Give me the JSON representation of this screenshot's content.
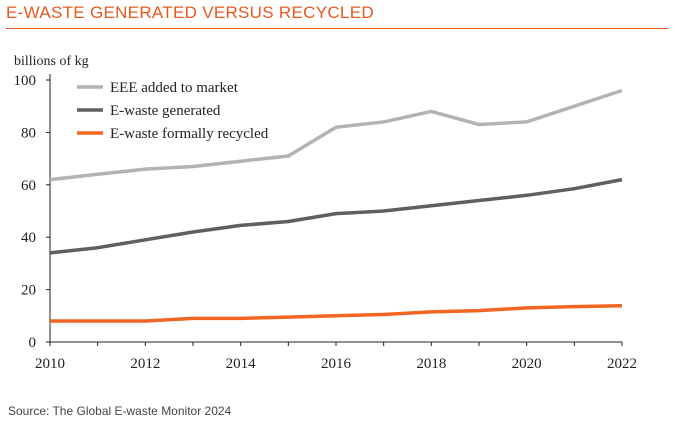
{
  "header": {
    "title": "E-WASTE GENERATED VERSUS RECYCLED"
  },
  "footer": {
    "source": "Source: The Global E-waste Monitor 2024"
  },
  "colors": {
    "accent": "#e55a1f",
    "market": "#b3b3b3",
    "generated": "#5f5f5f",
    "recycled": "#f26522",
    "axis": "#222222"
  },
  "chart_data": {
    "type": "line",
    "title": "E-WASTE GENERATED VERSUS RECYCLED",
    "ylabel": "billions of kg",
    "xlabel": "",
    "xlim": [
      2010,
      2022
    ],
    "ylim": [
      0,
      100
    ],
    "xticks": [
      2010,
      2012,
      2014,
      2016,
      2018,
      2020,
      2022
    ],
    "yticks": [
      0,
      20,
      40,
      60,
      80,
      100
    ],
    "grid": false,
    "legend_position": "top-left",
    "x": [
      2010,
      2011,
      2012,
      2013,
      2014,
      2015,
      2016,
      2017,
      2018,
      2019,
      2020,
      2021,
      2022
    ],
    "series": [
      {
        "name": "EEE added to market",
        "color": "#b3b3b3",
        "values": [
          62,
          64,
          66,
          67,
          69,
          71,
          82,
          84,
          88,
          83,
          84,
          90,
          96
        ]
      },
      {
        "name": "E-waste generated",
        "color": "#5f5f5f",
        "values": [
          34,
          36,
          39,
          42,
          44.5,
          46,
          49,
          50,
          52,
          54,
          56,
          58.5,
          62
        ]
      },
      {
        "name": "E-waste formally recycled",
        "color": "#f26522",
        "values": [
          8,
          8,
          8,
          9,
          9,
          9.5,
          10,
          10.5,
          11.5,
          12,
          13,
          13.5,
          13.8
        ]
      }
    ]
  }
}
